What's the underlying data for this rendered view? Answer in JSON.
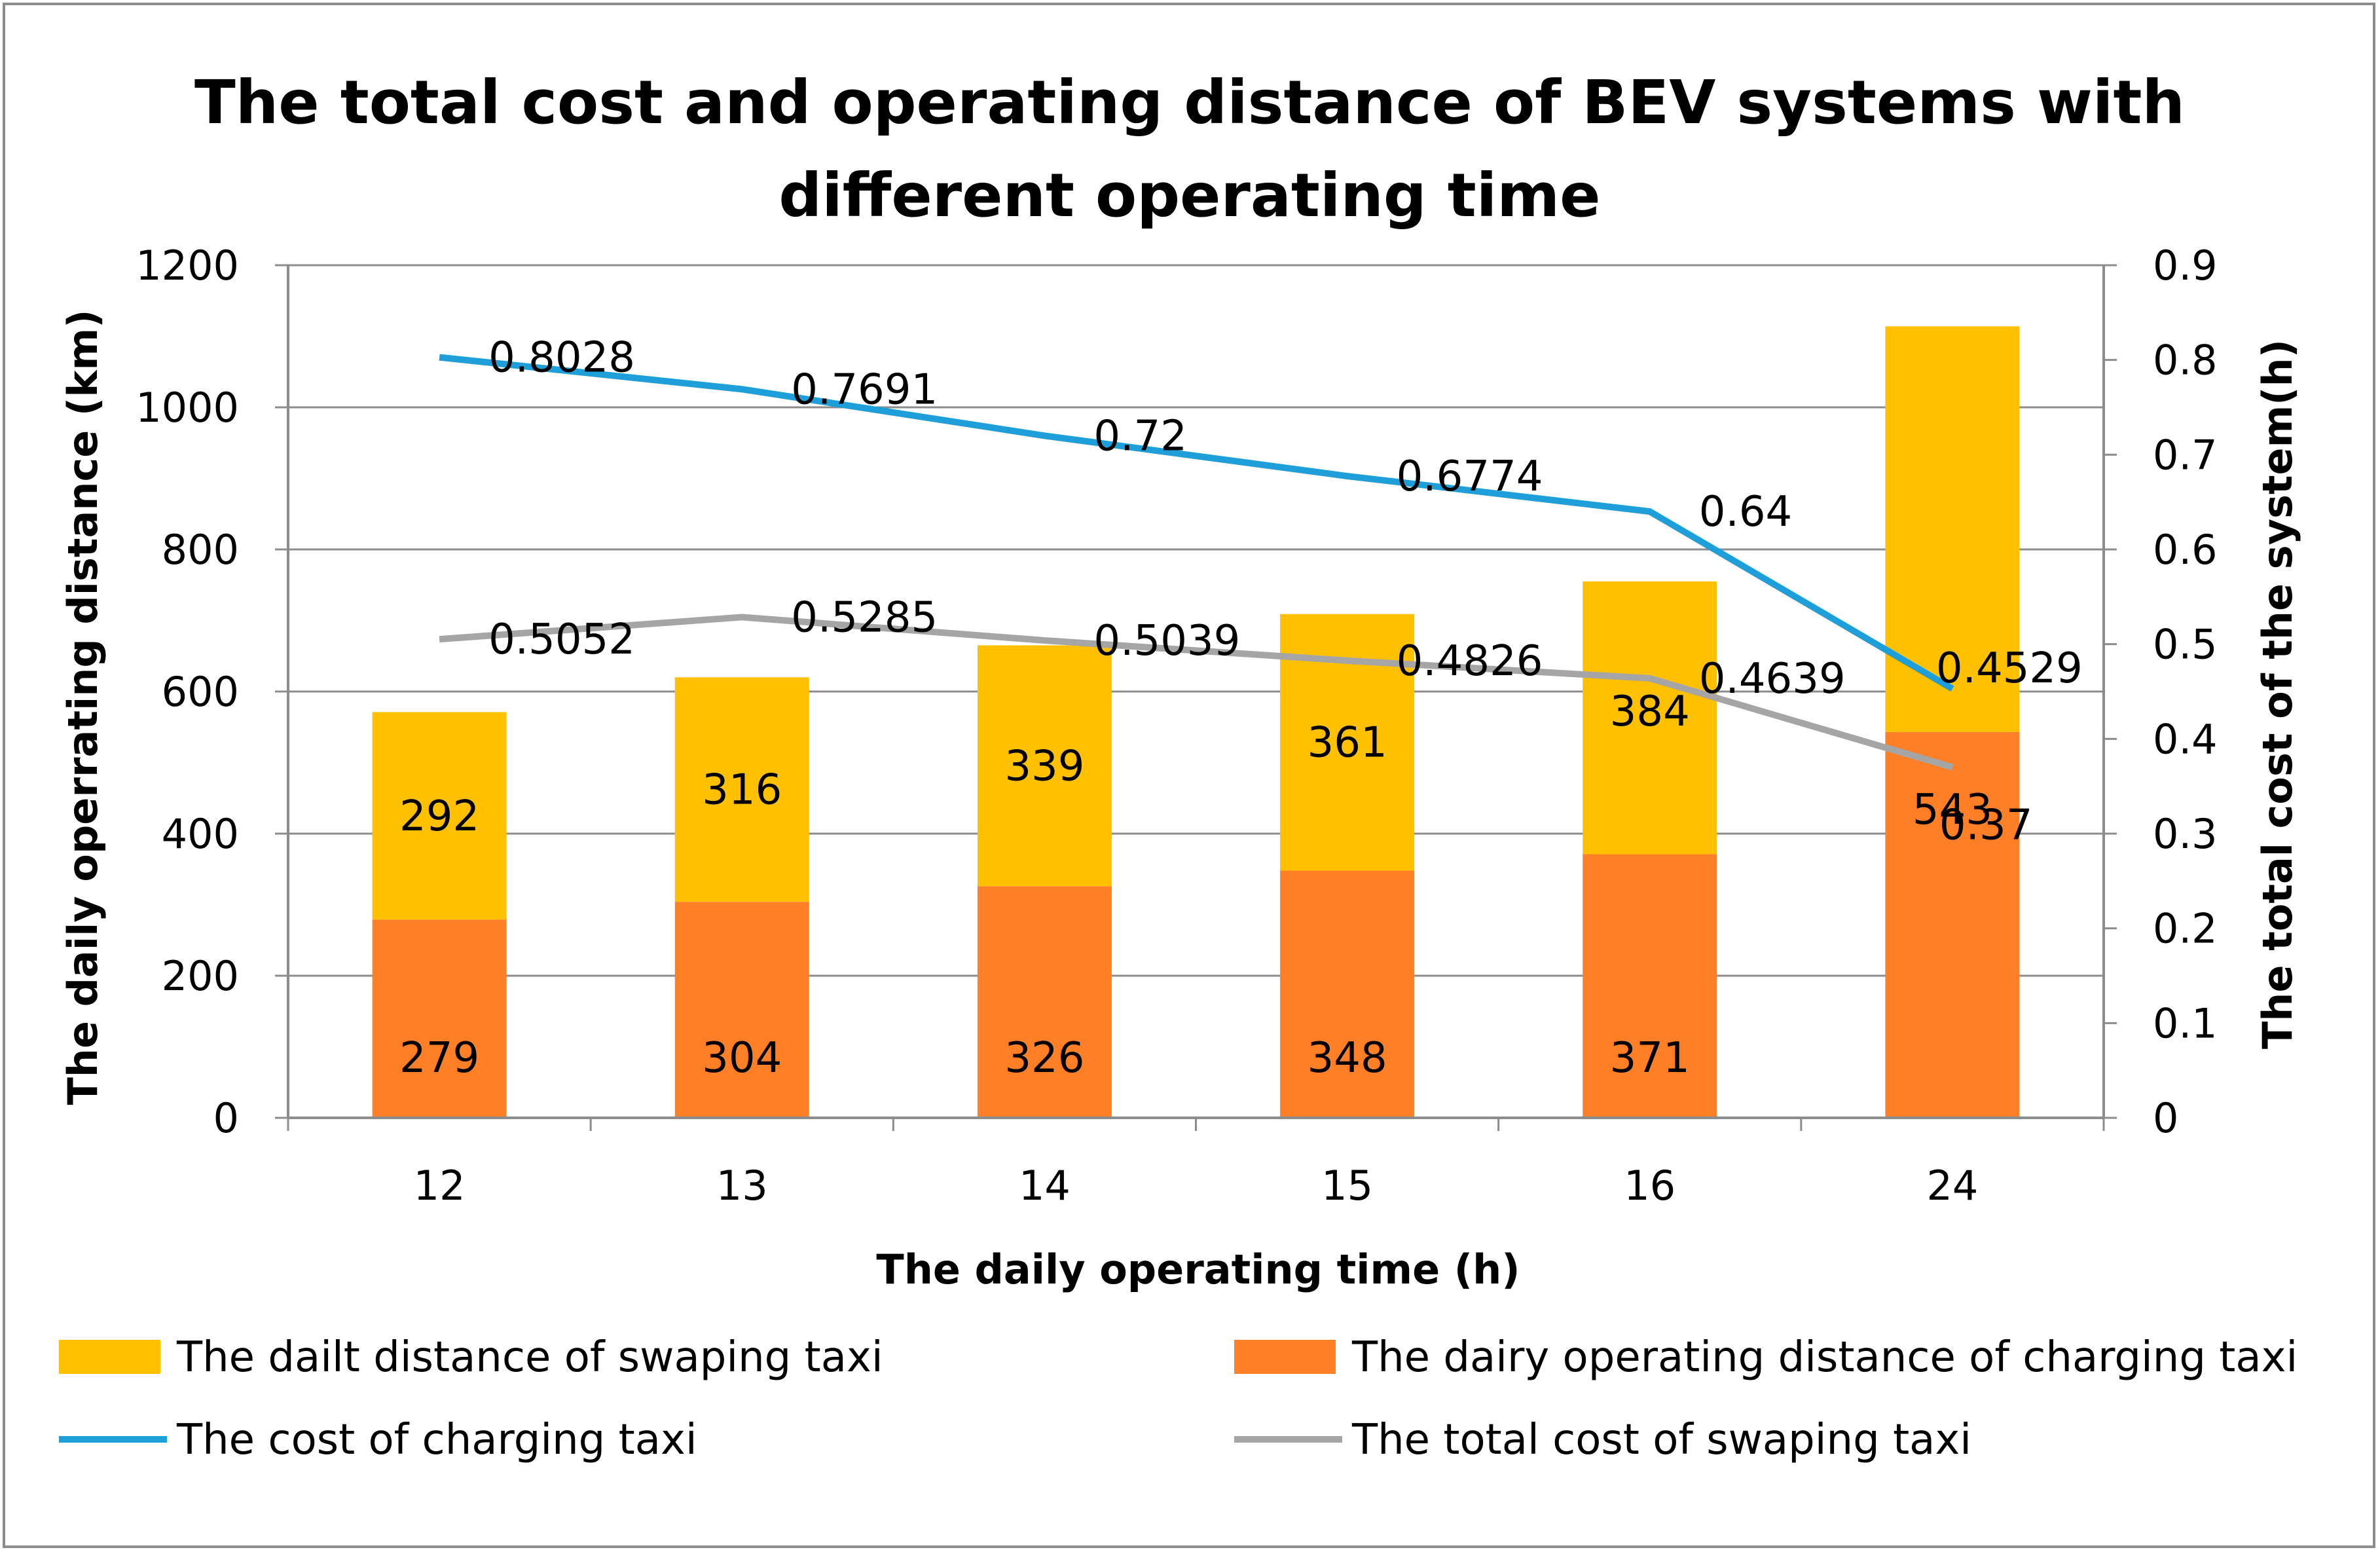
{
  "chart_data": {
    "type": "bar",
    "title_lines": [
      "The total cost and operating distance of BEV systems with",
      "different operating time"
    ],
    "xlabel": "The daily operating time (h)",
    "ylabel": "The daily operrating distance (km)",
    "y2label": "The total cost of the system(h)",
    "categories": [
      "12",
      "13",
      "14",
      "15",
      "16",
      "24"
    ],
    "ylim": [
      0,
      1200
    ],
    "y_ticks": [
      "0",
      "200",
      "400",
      "600",
      "800",
      "1000",
      "1200"
    ],
    "y2lim": [
      0,
      0.9
    ],
    "y2_ticks": [
      "0",
      "0.1",
      "0.2",
      "0.3",
      "0.4",
      "0.5",
      "0.6",
      "0.7",
      "0.8",
      "0.9"
    ],
    "grid": true,
    "legend_position": "bottom",
    "bar_series": [
      {
        "name": "The dairy operating distance of charging taxi",
        "color": "#FF7F27",
        "values": [
          279,
          304,
          326,
          348,
          371,
          543
        ],
        "labels": [
          "279",
          "304",
          "326",
          "348",
          "371",
          "543"
        ]
      },
      {
        "name": "The dailt distance of swaping taxi",
        "color": "#FFC000",
        "values": [
          292,
          316,
          339,
          361,
          384,
          571
        ],
        "labels": [
          "292",
          "316",
          "339",
          "361",
          "384",
          ""
        ]
      }
    ],
    "line_series": [
      {
        "name": "The cost of charging taxi",
        "color": "#1F9FDA",
        "values": [
          0.8028,
          0.7691,
          0.72,
          0.6774,
          0.64,
          0.4529
        ],
        "labels": [
          "0.8028",
          "0.7691",
          "0.72",
          "0.6774",
          "0.64",
          "0.4529"
        ]
      },
      {
        "name": "The total cost of swaping taxi",
        "color": "#A5A5A5",
        "values": [
          0.5052,
          0.5285,
          0.5039,
          0.4826,
          0.4639,
          0.37
        ],
        "labels": [
          "0.5052",
          "0.5285",
          "0.5039",
          "0.4826",
          "0.4639",
          "0.37"
        ]
      }
    ],
    "legend": [
      {
        "name": "The dailt distance of swaping taxi",
        "kind": "bar",
        "color": "#FFC000"
      },
      {
        "name": "The dairy operating distance of charging taxi",
        "kind": "bar",
        "color": "#FF7F27"
      },
      {
        "name": "The cost of charging taxi",
        "kind": "line",
        "color": "#1F9FDA"
      },
      {
        "name": "The total cost of swaping taxi",
        "kind": "line",
        "color": "#A5A5A5"
      }
    ]
  }
}
